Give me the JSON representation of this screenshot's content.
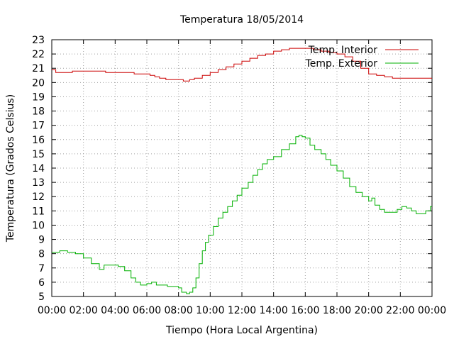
{
  "chart_data": {
    "type": "line",
    "title": "Temperatura 18/05/2014",
    "xlabel": "Tiempo (Hora Local Argentina)",
    "ylabel": "Temperatura (Grados Celsius)",
    "xlim": [
      0,
      24
    ],
    "ylim": [
      5,
      23
    ],
    "grid": true,
    "legend_position": "top-right",
    "x_tick_labels": [
      "00:00",
      "02:00",
      "04:00",
      "06:00",
      "08:00",
      "10:00",
      "12:00",
      "14:00",
      "16:00",
      "18:00",
      "20:00",
      "22:00",
      "00:00"
    ],
    "y_tick_labels": [
      "5",
      "6",
      "7",
      "8",
      "9",
      "10",
      "11",
      "12",
      "13",
      "14",
      "15",
      "16",
      "17",
      "18",
      "19",
      "20",
      "21",
      "22",
      "23"
    ],
    "series": [
      {
        "name": "Temp. Interior",
        "color": "#cc0000",
        "points": [
          [
            0.0,
            20.9
          ],
          [
            0.25,
            20.7
          ],
          [
            1.0,
            20.7
          ],
          [
            1.3,
            20.8
          ],
          [
            3.3,
            20.8
          ],
          [
            3.4,
            20.7
          ],
          [
            4.5,
            20.7
          ],
          [
            5.2,
            20.6
          ],
          [
            6.2,
            20.5
          ],
          [
            6.5,
            20.4
          ],
          [
            6.8,
            20.3
          ],
          [
            7.2,
            20.2
          ],
          [
            8.3,
            20.1
          ],
          [
            8.7,
            20.2
          ],
          [
            9.0,
            20.3
          ],
          [
            9.5,
            20.5
          ],
          [
            10.0,
            20.7
          ],
          [
            10.5,
            20.9
          ],
          [
            11.0,
            21.1
          ],
          [
            11.5,
            21.3
          ],
          [
            12.0,
            21.5
          ],
          [
            12.5,
            21.7
          ],
          [
            13.0,
            21.9
          ],
          [
            13.5,
            22.0
          ],
          [
            14.0,
            22.2
          ],
          [
            14.5,
            22.3
          ],
          [
            15.0,
            22.4
          ],
          [
            15.5,
            22.4
          ],
          [
            16.0,
            22.4
          ],
          [
            16.5,
            22.3
          ],
          [
            17.0,
            22.2
          ],
          [
            17.5,
            22.1
          ],
          [
            18.0,
            22.0
          ],
          [
            18.5,
            21.8
          ],
          [
            19.0,
            21.5
          ],
          [
            19.5,
            21.0
          ],
          [
            20.0,
            20.6
          ],
          [
            20.5,
            20.5
          ],
          [
            21.0,
            20.4
          ],
          [
            21.5,
            20.3
          ],
          [
            24.0,
            20.3
          ]
        ]
      },
      {
        "name": "Temp. Exterior",
        "color": "#00b000",
        "points": [
          [
            0.0,
            8.1
          ],
          [
            0.5,
            8.2
          ],
          [
            1.0,
            8.1
          ],
          [
            1.5,
            8.0
          ],
          [
            2.0,
            7.7
          ],
          [
            2.5,
            7.3
          ],
          [
            3.0,
            6.9
          ],
          [
            3.3,
            7.2
          ],
          [
            3.8,
            7.2
          ],
          [
            4.2,
            7.1
          ],
          [
            4.6,
            6.8
          ],
          [
            5.0,
            6.3
          ],
          [
            5.3,
            6.0
          ],
          [
            5.6,
            5.8
          ],
          [
            6.0,
            5.9
          ],
          [
            6.3,
            6.0
          ],
          [
            6.6,
            5.8
          ],
          [
            7.0,
            5.8
          ],
          [
            7.3,
            5.7
          ],
          [
            7.6,
            5.7
          ],
          [
            8.0,
            5.6
          ],
          [
            8.2,
            5.3
          ],
          [
            8.5,
            5.2
          ],
          [
            8.7,
            5.3
          ],
          [
            8.9,
            5.6
          ],
          [
            9.1,
            6.3
          ],
          [
            9.3,
            7.3
          ],
          [
            9.5,
            8.2
          ],
          [
            9.7,
            8.8
          ],
          [
            9.9,
            9.3
          ],
          [
            10.2,
            9.9
          ],
          [
            10.5,
            10.5
          ],
          [
            10.8,
            10.9
          ],
          [
            11.1,
            11.3
          ],
          [
            11.4,
            11.7
          ],
          [
            11.7,
            12.1
          ],
          [
            12.0,
            12.6
          ],
          [
            12.4,
            13.0
          ],
          [
            12.7,
            13.5
          ],
          [
            13.0,
            13.9
          ],
          [
            13.3,
            14.3
          ],
          [
            13.6,
            14.6
          ],
          [
            14.0,
            14.8
          ],
          [
            14.5,
            15.3
          ],
          [
            15.0,
            15.7
          ],
          [
            15.4,
            16.2
          ],
          [
            15.6,
            16.3
          ],
          [
            15.8,
            16.2
          ],
          [
            16.0,
            16.1
          ],
          [
            16.3,
            15.6
          ],
          [
            16.6,
            15.3
          ],
          [
            17.0,
            15.0
          ],
          [
            17.3,
            14.6
          ],
          [
            17.6,
            14.2
          ],
          [
            18.0,
            13.8
          ],
          [
            18.4,
            13.3
          ],
          [
            18.8,
            12.7
          ],
          [
            19.2,
            12.3
          ],
          [
            19.6,
            12.0
          ],
          [
            20.0,
            11.7
          ],
          [
            20.2,
            11.9
          ],
          [
            20.4,
            11.4
          ],
          [
            20.7,
            11.1
          ],
          [
            21.0,
            10.9
          ],
          [
            21.4,
            10.9
          ],
          [
            21.8,
            11.1
          ],
          [
            22.1,
            11.3
          ],
          [
            22.4,
            11.2
          ],
          [
            22.7,
            11.0
          ],
          [
            23.0,
            10.8
          ],
          [
            23.3,
            10.8
          ],
          [
            23.6,
            11.0
          ],
          [
            23.9,
            11.3
          ],
          [
            24.0,
            11.3
          ]
        ]
      }
    ]
  }
}
